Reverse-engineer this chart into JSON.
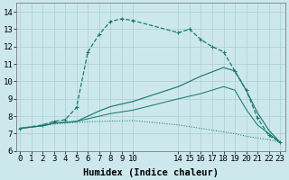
{
  "xlabel": "Humidex (Indice chaleur)",
  "background_color": "#cde8ec",
  "grid_color": "#aacdd4",
  "line_color": "#1a7a6e",
  "line1_x": [
    0,
    2,
    3,
    4,
    5,
    6,
    7,
    8,
    9,
    10,
    14,
    15,
    16,
    17,
    18,
    19,
    20,
    21,
    22,
    23
  ],
  "line1_y": [
    7.3,
    7.5,
    7.7,
    7.8,
    8.5,
    11.7,
    12.7,
    13.45,
    13.6,
    13.5,
    12.8,
    13.0,
    12.4,
    12.0,
    11.7,
    10.6,
    9.5,
    7.9,
    6.9,
    6.5
  ],
  "line2_x": [
    0,
    2,
    3,
    4,
    5,
    6,
    7,
    8,
    9,
    10,
    14,
    15,
    16,
    17,
    18,
    19,
    20,
    21,
    22,
    23
  ],
  "line2_y": [
    7.3,
    7.45,
    7.55,
    7.6,
    7.65,
    7.68,
    7.7,
    7.72,
    7.73,
    7.75,
    7.5,
    7.4,
    7.3,
    7.2,
    7.1,
    7.0,
    6.85,
    6.75,
    6.65,
    6.5
  ],
  "line3_x": [
    0,
    2,
    3,
    4,
    5,
    6,
    7,
    8,
    9,
    10,
    14,
    15,
    16,
    17,
    18,
    19,
    20,
    21,
    22,
    23
  ],
  "line3_y": [
    7.3,
    7.45,
    7.6,
    7.65,
    7.7,
    8.0,
    8.3,
    8.55,
    8.7,
    8.85,
    9.7,
    10.0,
    10.3,
    10.55,
    10.8,
    10.6,
    9.5,
    8.2,
    7.2,
    6.5
  ],
  "line4_x": [
    0,
    2,
    3,
    4,
    5,
    6,
    7,
    8,
    9,
    10,
    14,
    15,
    16,
    17,
    18,
    19,
    20,
    21,
    22,
    23
  ],
  "line4_y": [
    7.3,
    7.45,
    7.6,
    7.65,
    7.7,
    7.85,
    8.0,
    8.15,
    8.25,
    8.35,
    9.0,
    9.15,
    9.3,
    9.5,
    9.7,
    9.5,
    8.4,
    7.5,
    7.0,
    6.5
  ],
  "xlim": [
    -0.3,
    23.5
  ],
  "ylim": [
    6.0,
    14.5
  ],
  "xticks": [
    0,
    1,
    2,
    3,
    4,
    5,
    6,
    7,
    8,
    9,
    10,
    14,
    15,
    16,
    17,
    18,
    19,
    20,
    21,
    22,
    23
  ],
  "yticks": [
    6,
    7,
    8,
    9,
    10,
    11,
    12,
    13,
    14
  ],
  "tick_fontsize": 6.5,
  "label_fontsize": 7.5
}
